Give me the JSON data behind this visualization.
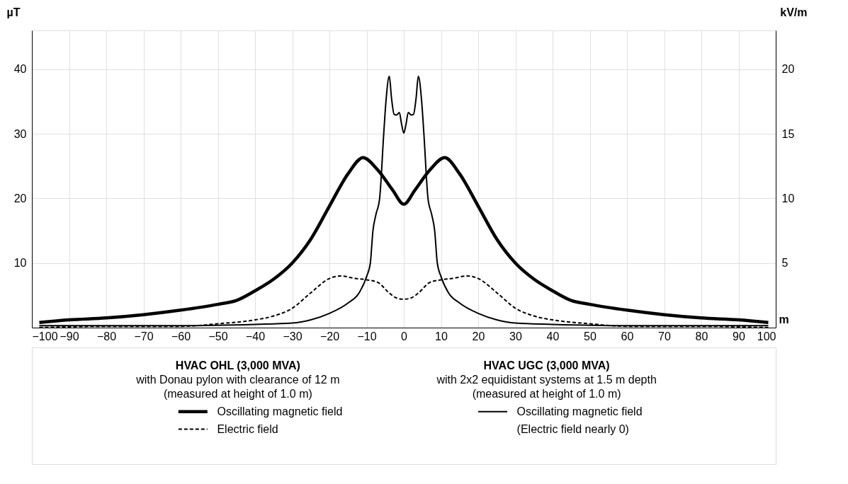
{
  "chart_data": {
    "type": "line",
    "xlabel": "m",
    "ylabel": "µT",
    "y2label": "kV/m",
    "xlim": [
      -100,
      100
    ],
    "xticks": [
      -100,
      -90,
      -80,
      -70,
      -60,
      -50,
      -40,
      -30,
      -20,
      -10,
      0,
      10,
      20,
      30,
      40,
      50,
      60,
      70,
      80,
      90,
      100
    ],
    "ylim": [
      0,
      46
    ],
    "yticks": [
      10,
      20,
      30,
      40
    ],
    "y2lim": [
      0,
      23
    ],
    "y2ticks": [
      5,
      10,
      15,
      20
    ],
    "grid": true,
    "legend": "bottom",
    "annotations": [
      "HVAC OHL (3,000 MVA)",
      "with Donau pylon with clearance of 12 m",
      "(measured at height of 1.0 m)",
      "HVAC UGC (3,000 MVA)",
      "with 2x2 equidistant systems at 1.5 m depth",
      "(measured at height of 1.0 m)",
      "(Electric field nearly 0)"
    ],
    "series": [
      {
        "name": "Oscillating magnetic field",
        "color": "#000000",
        "line_style": "solid",
        "x": [
          -98,
          -90,
          -80,
          -70,
          -60,
          -50,
          -45,
          -40,
          -35,
          -30,
          -25,
          -20,
          -15,
          -11,
          -7,
          -3,
          0,
          3,
          7,
          11,
          15,
          20,
          25,
          30,
          35,
          40,
          45,
          50,
          60,
          70,
          80,
          90,
          98
        ],
        "values": [
          0.8,
          1.2,
          1.5,
          2.0,
          2.7,
          3.6,
          4.2,
          5.7,
          7.5,
          10.0,
          13.7,
          18.8,
          23.8,
          26.3,
          24.4,
          21.3,
          19.1,
          21.3,
          24.4,
          26.3,
          23.8,
          18.8,
          13.7,
          10.0,
          7.5,
          5.7,
          4.2,
          3.6,
          2.7,
          2.0,
          1.5,
          1.2,
          0.8
        ]
      },
      {
        "name": "Oscillating magnetic field",
        "color": "#000000",
        "line_style": "solid",
        "x": [
          -98,
          -80,
          -60,
          -40,
          -30,
          -25,
          -20,
          -15,
          -12,
          -10,
          -9,
          -8.3,
          -7.5,
          -6.5,
          -5.4,
          -4.8,
          -3.9,
          -3.3,
          -2.6,
          -2.0,
          -1.2,
          -0.6,
          0,
          0.6,
          1.2,
          2.0,
          2.6,
          3.3,
          3.9,
          4.8,
          5.4,
          6.5,
          7.5,
          8.3,
          9,
          10,
          12,
          15,
          20,
          25,
          30,
          40,
          60,
          80,
          98
        ],
        "values": [
          0.3,
          0.3,
          0.3,
          0.5,
          0.7,
          1.2,
          2.2,
          3.8,
          5.4,
          7.9,
          10,
          15,
          17.5,
          20,
          30,
          35,
          38.9,
          35.5,
          33,
          32.9,
          33.3,
          31.5,
          30.1,
          31.5,
          33.3,
          32.9,
          33,
          35.5,
          38.9,
          35,
          30,
          20,
          17.5,
          15,
          10,
          7.9,
          5.4,
          3.8,
          2.2,
          1.2,
          0.7,
          0.5,
          0.3,
          0.3,
          0.3
        ]
      },
      {
        "name": "Electric field",
        "color": "#000000",
        "line_style": "dashed",
        "axis": "y2",
        "x": [
          -98,
          -80,
          -60,
          -50,
          -40,
          -35,
          -30,
          -25,
          -20,
          -17,
          -13,
          -10,
          -7,
          -4,
          -2,
          0,
          2,
          4,
          7,
          10,
          13,
          17,
          20,
          25,
          30,
          35,
          40,
          50,
          60,
          80,
          98
        ],
        "values": [
          0.0,
          0.1,
          0.1,
          0.3,
          0.6,
          0.9,
          1.5,
          2.7,
          3.8,
          4.0,
          3.8,
          3.7,
          3.5,
          2.7,
          2.3,
          2.2,
          2.3,
          2.7,
          3.5,
          3.7,
          3.8,
          4.0,
          3.8,
          2.7,
          1.5,
          0.9,
          0.6,
          0.3,
          0.1,
          0.1,
          0.0
        ]
      }
    ]
  }
}
